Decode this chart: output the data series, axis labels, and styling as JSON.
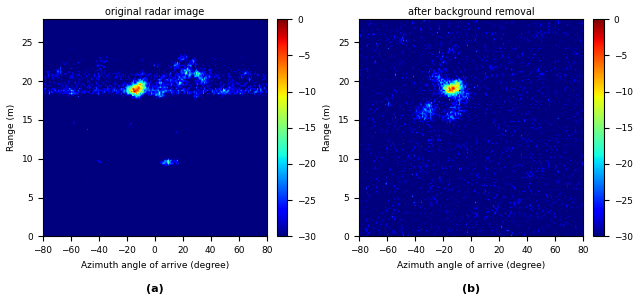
{
  "title_left": "original radar image",
  "title_right": "after background removal",
  "xlabel": "Azimuth angle of arrive (degree)",
  "ylabel": "Range (m)",
  "label_a": "(a)",
  "label_b": "(b)",
  "x_range": [
    -80,
    80
  ],
  "y_range": [
    0,
    28
  ],
  "clim": [
    -30,
    0
  ],
  "cmap": "jet",
  "xticks": [
    -80,
    -60,
    -40,
    -20,
    0,
    20,
    40,
    60,
    80
  ],
  "yticks": [
    0,
    5,
    10,
    15,
    20,
    25
  ],
  "cticks": [
    0,
    -5,
    -10,
    -15,
    -20,
    -25,
    -30
  ],
  "figsize": [
    6.4,
    3.05
  ],
  "dpi": 100,
  "background_db": -12,
  "noise_std": 3
}
